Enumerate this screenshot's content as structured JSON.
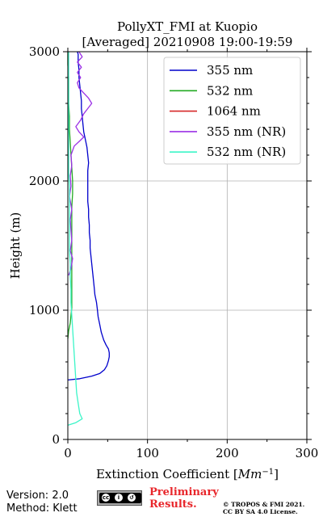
{
  "chart_data": {
    "type": "line",
    "title_line1": "PollyXT_FMI at Kuopio",
    "title_line2": "[Averaged] 20210908 19:00-19:59",
    "xlabel_text": "Extinction Coefficient [",
    "xlabel_unit": "Mm",
    "xlabel_exp": "−1",
    "xlabel_close": "]",
    "ylabel": "Height (m)",
    "xlim": [
      0,
      300
    ],
    "ylim": [
      0,
      3000
    ],
    "xticks": [
      "0",
      "100",
      "200",
      "300"
    ],
    "yticks": [
      "0",
      "1000",
      "2000",
      "3000"
    ],
    "grid": true,
    "legend_position": "top-right",
    "series": [
      {
        "name": "355 nm",
        "color": "#0000cc",
        "points": [
          [
            0,
            460
          ],
          [
            15,
            470
          ],
          [
            30,
            490
          ],
          [
            40,
            510
          ],
          [
            46,
            540
          ],
          [
            49,
            570
          ],
          [
            51,
            610
          ],
          [
            52,
            640
          ],
          [
            52,
            670
          ],
          [
            51,
            700
          ],
          [
            48,
            730
          ],
          [
            45,
            770
          ],
          [
            42,
            830
          ],
          [
            40,
            890
          ],
          [
            38,
            950
          ],
          [
            37,
            1010
          ],
          [
            36,
            1060
          ],
          [
            34,
            1120
          ],
          [
            33,
            1180
          ],
          [
            32,
            1240
          ],
          [
            31,
            1300
          ],
          [
            30,
            1360
          ],
          [
            29,
            1420
          ],
          [
            28,
            1480
          ],
          [
            28,
            1540
          ],
          [
            27,
            1600
          ],
          [
            27,
            1660
          ],
          [
            26,
            1720
          ],
          [
            26,
            1780
          ],
          [
            25,
            1840
          ],
          [
            25,
            1900
          ],
          [
            25,
            1960
          ],
          [
            25,
            2020
          ],
          [
            25,
            2080
          ],
          [
            26,
            2140
          ],
          [
            25,
            2200
          ],
          [
            24,
            2260
          ],
          [
            22,
            2320
          ],
          [
            20,
            2380
          ],
          [
            19,
            2440
          ],
          [
            18,
            2500
          ],
          [
            17,
            2560
          ],
          [
            17,
            2620
          ],
          [
            16,
            2680
          ],
          [
            15,
            2740
          ],
          [
            14,
            2800
          ],
          [
            14,
            2860
          ],
          [
            13,
            2920
          ],
          [
            13,
            2980
          ],
          [
            12,
            3000
          ]
        ]
      },
      {
        "name": "532 nm",
        "color": "#22aa22",
        "points": [
          [
            0,
            780
          ],
          [
            1,
            840
          ],
          [
            3,
            900
          ],
          [
            4,
            960
          ],
          [
            5,
            1020
          ],
          [
            5,
            1100
          ],
          [
            5,
            1200
          ],
          [
            5,
            1300
          ],
          [
            5,
            1400
          ],
          [
            5,
            1500
          ],
          [
            5,
            1600
          ],
          [
            5,
            1700
          ],
          [
            5,
            1800
          ],
          [
            6,
            1900
          ],
          [
            6,
            2000
          ],
          [
            5,
            2100
          ],
          [
            4,
            2200
          ],
          [
            3,
            2300
          ],
          [
            2,
            2400
          ],
          [
            2,
            2500
          ],
          [
            1,
            2600
          ],
          [
            1,
            2700
          ],
          [
            1,
            2800
          ],
          [
            0,
            2900
          ],
          [
            0,
            3000
          ]
        ]
      },
      {
        "name": "1064 nm",
        "color": "#d62728",
        "points": []
      },
      {
        "name": "355 nm (NR)",
        "color": "#9b30e6",
        "points": [
          [
            1,
            1270
          ],
          [
            4,
            1320
          ],
          [
            6,
            1400
          ],
          [
            3,
            1460
          ],
          [
            5,
            1540
          ],
          [
            4,
            1620
          ],
          [
            3,
            1700
          ],
          [
            5,
            1780
          ],
          [
            2,
            1880
          ],
          [
            4,
            1960
          ],
          [
            3,
            2040
          ],
          [
            5,
            2120
          ],
          [
            4,
            2200
          ],
          [
            8,
            2270
          ],
          [
            15,
            2310
          ],
          [
            20,
            2340
          ],
          [
            14,
            2380
          ],
          [
            10,
            2420
          ],
          [
            16,
            2470
          ],
          [
            20,
            2520
          ],
          [
            25,
            2560
          ],
          [
            30,
            2600
          ],
          [
            26,
            2640
          ],
          [
            20,
            2680
          ],
          [
            14,
            2720
          ],
          [
            12,
            2760
          ],
          [
            16,
            2800
          ],
          [
            12,
            2840
          ],
          [
            17,
            2880
          ],
          [
            12,
            2920
          ],
          [
            18,
            2960
          ],
          [
            14,
            3000
          ]
        ]
      },
      {
        "name": "532 nm (NR)",
        "color": "#3cf5c8",
        "points": [
          [
            0,
            110
          ],
          [
            10,
            130
          ],
          [
            18,
            160
          ],
          [
            15,
            200
          ],
          [
            13,
            280
          ],
          [
            11,
            360
          ],
          [
            10,
            460
          ],
          [
            9,
            560
          ],
          [
            8,
            660
          ],
          [
            7,
            760
          ],
          [
            6,
            860
          ],
          [
            5,
            960
          ],
          [
            4,
            1060
          ],
          [
            4,
            1160
          ],
          [
            3,
            1260
          ],
          [
            3,
            1360
          ],
          [
            2,
            1460
          ],
          [
            2,
            1560
          ],
          [
            2,
            1660
          ],
          [
            2,
            1760
          ],
          [
            2,
            1860
          ],
          [
            2,
            1960
          ],
          [
            1,
            2060
          ],
          [
            1,
            2160
          ],
          [
            1,
            2260
          ],
          [
            1,
            2360
          ],
          [
            1,
            2460
          ],
          [
            1,
            2560
          ],
          [
            1,
            2660
          ],
          [
            1,
            2760
          ],
          [
            1,
            2860
          ],
          [
            1,
            2960
          ],
          [
            1,
            3000
          ]
        ]
      }
    ]
  },
  "footer": {
    "version": "Version: 2.0",
    "method": "Method: Klett",
    "cc_label": "CC BY SA",
    "preliminary_line1": "Preliminary",
    "preliminary_line2": "Results.",
    "copyright_line1": "© TROPOS & FMI 2021.",
    "copyright_line2": "CC BY SA 4.0 License."
  }
}
